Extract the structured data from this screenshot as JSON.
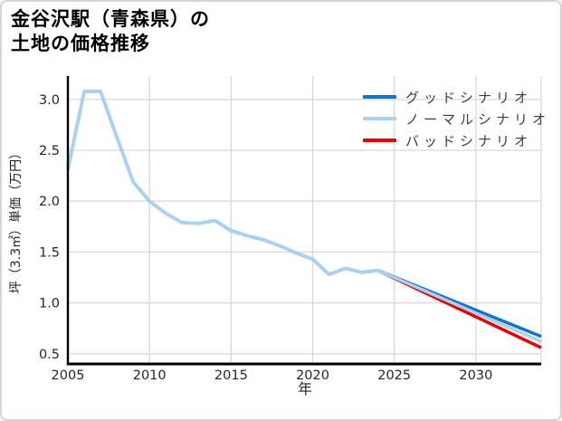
{
  "title": {
    "line1": "金谷沢駅（青森県）の",
    "line2": "土地の価格推移"
  },
  "legend": [
    {
      "label": "グッドシナリオ",
      "color": "#1273ce"
    },
    {
      "label": "ノーマルシナリオ",
      "color": "#a8d1f2"
    },
    {
      "label": "バッドシナリオ",
      "color": "#ef0000"
    }
  ],
  "chart_data": {
    "type": "line",
    "title": "金谷沢駅（青森県）の土地の価格推移",
    "xlabel": "年",
    "ylabel": "坪（3.3㎡）単価（万円）",
    "xlim": [
      2005,
      2034
    ],
    "ylim": [
      0.4,
      3.23
    ],
    "xticks": [
      2005,
      2010,
      2015,
      2020,
      2025,
      2030
    ],
    "yticks": [
      0.5,
      1.0,
      1.5,
      2.0,
      2.5,
      3.0
    ],
    "grid": true,
    "legend_position": "top-right",
    "series": [
      {
        "name": "グッドシナリオ",
        "color": "#1273ce",
        "width": 3.5,
        "x": [
          2024,
          2034
        ],
        "y": [
          1.32,
          0.67
        ]
      },
      {
        "name": "バッドシナリオ",
        "color": "#ef0000",
        "width": 3.5,
        "x": [
          2024,
          2034
        ],
        "y": [
          1.32,
          0.56
        ]
      },
      {
        "name": "ノーマルシナリオ（予測）",
        "color": "#a8d1f2",
        "width": 3.5,
        "x": [
          2024,
          2034
        ],
        "y": [
          1.32,
          0.62
        ]
      },
      {
        "name": "ノーマルシナリオ（実績）",
        "color": "#a8d1f2",
        "width": 4,
        "x": [
          2005,
          2006,
          2007,
          2008,
          2009,
          2010,
          2011,
          2012,
          2013,
          2014,
          2015,
          2016,
          2017,
          2018,
          2019,
          2020,
          2021,
          2022,
          2023,
          2024
        ],
        "y": [
          2.31,
          3.08,
          3.08,
          2.63,
          2.19,
          2.0,
          1.88,
          1.79,
          1.78,
          1.81,
          1.71,
          1.66,
          1.62,
          1.56,
          1.49,
          1.43,
          1.28,
          1.34,
          1.3,
          1.32
        ]
      }
    ],
    "colors": {
      "gridline": "#d9d9d9",
      "spine": "#000000",
      "tick_label": "#262626",
      "axis_label": "#262626"
    }
  }
}
